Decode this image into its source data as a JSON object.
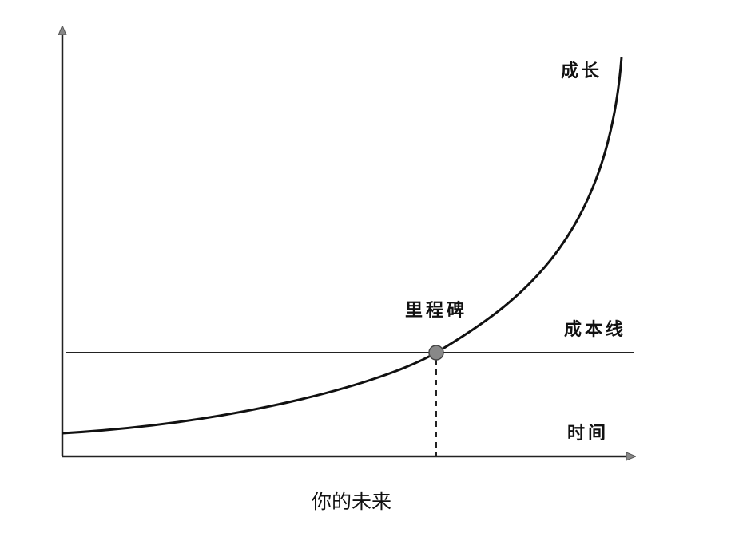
{
  "labels": {
    "growth": "成长",
    "milestone": "里程碑",
    "cost_line": "成本线",
    "time": "时间"
  },
  "caption": "你的未来"
}
